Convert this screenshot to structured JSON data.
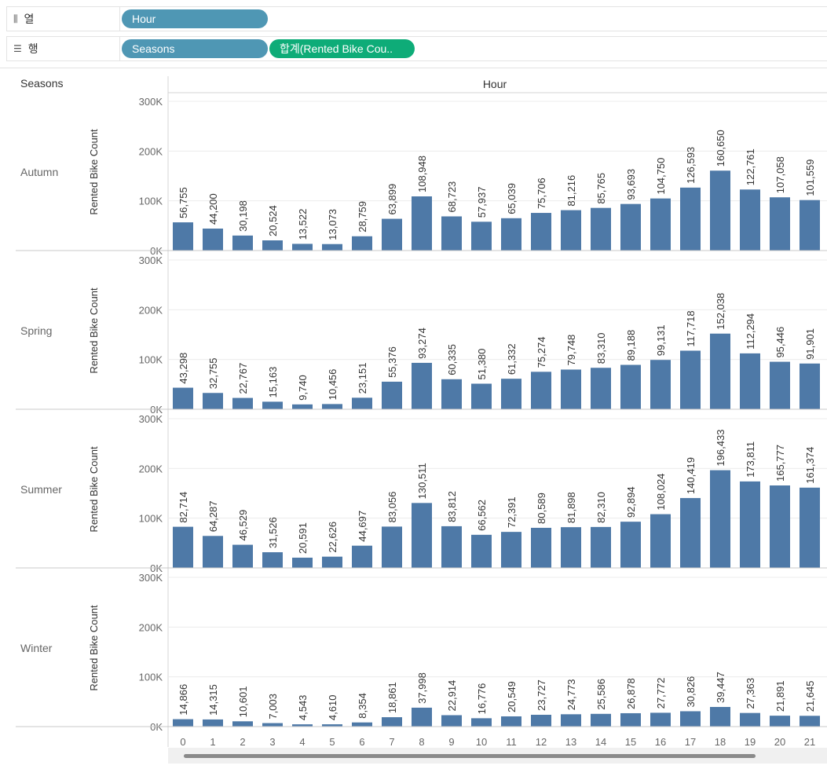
{
  "shelves": {
    "columns": {
      "label": "열",
      "icon": "columns-icon",
      "pills": [
        "Hour"
      ]
    },
    "rows": {
      "label": "행",
      "icon": "rows-icon",
      "pills": [
        "Seasons",
        "합계(Rented Bike Cou.."
      ]
    }
  },
  "colors": {
    "bar": "#4e79a7",
    "dimension_pill": "#4f97b4",
    "measure_pill": "#0eac78"
  },
  "chart_data": {
    "type": "bar",
    "row_header": "Seasons",
    "column_header": "Hour",
    "ylabel": "Rented Bike Count",
    "ylim": [
      0,
      300000
    ],
    "yticks": [
      "0K",
      "100K",
      "200K",
      "300K"
    ],
    "categories": [
      "0",
      "1",
      "2",
      "3",
      "4",
      "5",
      "6",
      "7",
      "8",
      "9",
      "10",
      "11",
      "12",
      "13",
      "14",
      "15",
      "16",
      "17",
      "18",
      "19",
      "20",
      "21"
    ],
    "grid": true,
    "panels": [
      {
        "name": "Autumn",
        "values": [
          56755,
          44200,
          30198,
          20524,
          13522,
          13073,
          28759,
          63899,
          108948,
          68723,
          57937,
          65039,
          75706,
          81216,
          85765,
          93693,
          104750,
          126593,
          160650,
          122761,
          107058,
          101559
        ],
        "labels": [
          "56,755",
          "44,200",
          "30,198",
          "20,524",
          "13,522",
          "13,073",
          "28,759",
          "63,899",
          "108,948",
          "68,723",
          "57,937",
          "65,039",
          "75,706",
          "81,216",
          "85,765",
          "93,693",
          "104,750",
          "126,593",
          "160,650",
          "122,761",
          "107,058",
          "101,559"
        ]
      },
      {
        "name": "Spring",
        "values": [
          43298,
          32755,
          22767,
          15163,
          9740,
          10456,
          23151,
          55376,
          93274,
          60335,
          51380,
          61332,
          75274,
          79748,
          83310,
          89188,
          99131,
          117718,
          152038,
          112294,
          95446,
          91901
        ],
        "labels": [
          "43,298",
          "32,755",
          "22,767",
          "15,163",
          "9,740",
          "10,456",
          "23,151",
          "55,376",
          "93,274",
          "60,335",
          "51,380",
          "61,332",
          "75,274",
          "79,748",
          "83,310",
          "89,188",
          "99,131",
          "117,718",
          "152,038",
          "112,294",
          "95,446",
          "91,901"
        ]
      },
      {
        "name": "Summer",
        "values": [
          82714,
          64287,
          46529,
          31526,
          20591,
          22626,
          44697,
          83056,
          130511,
          83812,
          66562,
          72391,
          80589,
          81898,
          82310,
          92894,
          108024,
          140419,
          196433,
          173811,
          165777,
          161374
        ],
        "labels": [
          "82,714",
          "64,287",
          "46,529",
          "31,526",
          "20,591",
          "22,626",
          "44,697",
          "83,056",
          "130,511",
          "83,812",
          "66,562",
          "72,391",
          "80,589",
          "81,898",
          "82,310",
          "92,894",
          "108,024",
          "140,419",
          "196,433",
          "173,811",
          "165,777",
          "161,374"
        ]
      },
      {
        "name": "Winter",
        "values": [
          14866,
          14315,
          10601,
          7003,
          4543,
          4610,
          8354,
          18861,
          37998,
          22914,
          16776,
          20549,
          23727,
          24773,
          25586,
          26878,
          27772,
          30826,
          39447,
          27363,
          21891,
          21645
        ],
        "labels": [
          "14,866",
          "14,315",
          "10,601",
          "7,003",
          "4,543",
          "4,610",
          "8,354",
          "18,861",
          "37,998",
          "22,914",
          "16,776",
          "20,549",
          "23,727",
          "24,773",
          "25,586",
          "26,878",
          "27,772",
          "30,826",
          "39,447",
          "27,363",
          "21,891",
          "21,645"
        ]
      }
    ]
  }
}
